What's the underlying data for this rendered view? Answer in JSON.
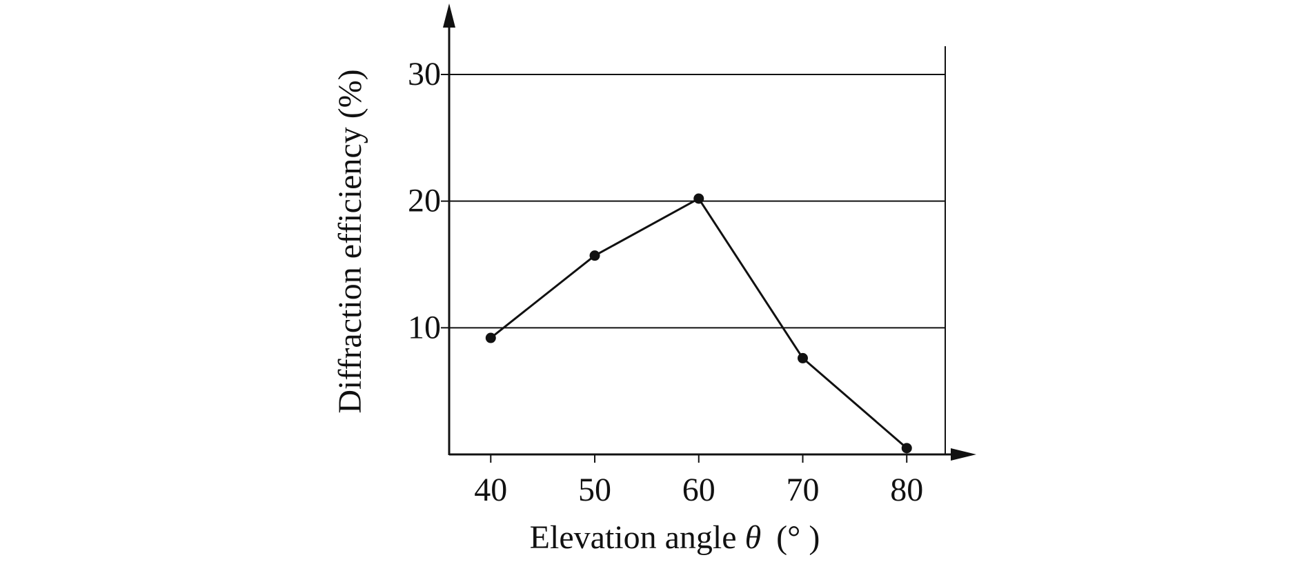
{
  "chart_data": {
    "type": "line",
    "xlabel_prefix": "Elevation angle ",
    "xlabel_symbol": "θ",
    "xlabel_unit": "(° )",
    "ylabel": "Diffraction efficiency (%)",
    "x": [
      40,
      50,
      60,
      70,
      80
    ],
    "y": [
      9.2,
      15.7,
      20.2,
      7.6,
      0.5
    ],
    "x_ticks": [
      "40",
      "50",
      "60",
      "70",
      "80"
    ],
    "y_ticks": [
      "10",
      "20",
      "30"
    ],
    "y_tick_values": [
      10,
      20,
      30
    ],
    "xlim": [
      36,
      83.7
    ],
    "ylim": [
      0,
      30
    ],
    "grid": "horizontal",
    "markers": "filled circles",
    "colors": {
      "line": "#111111",
      "grid": "#111111"
    }
  }
}
